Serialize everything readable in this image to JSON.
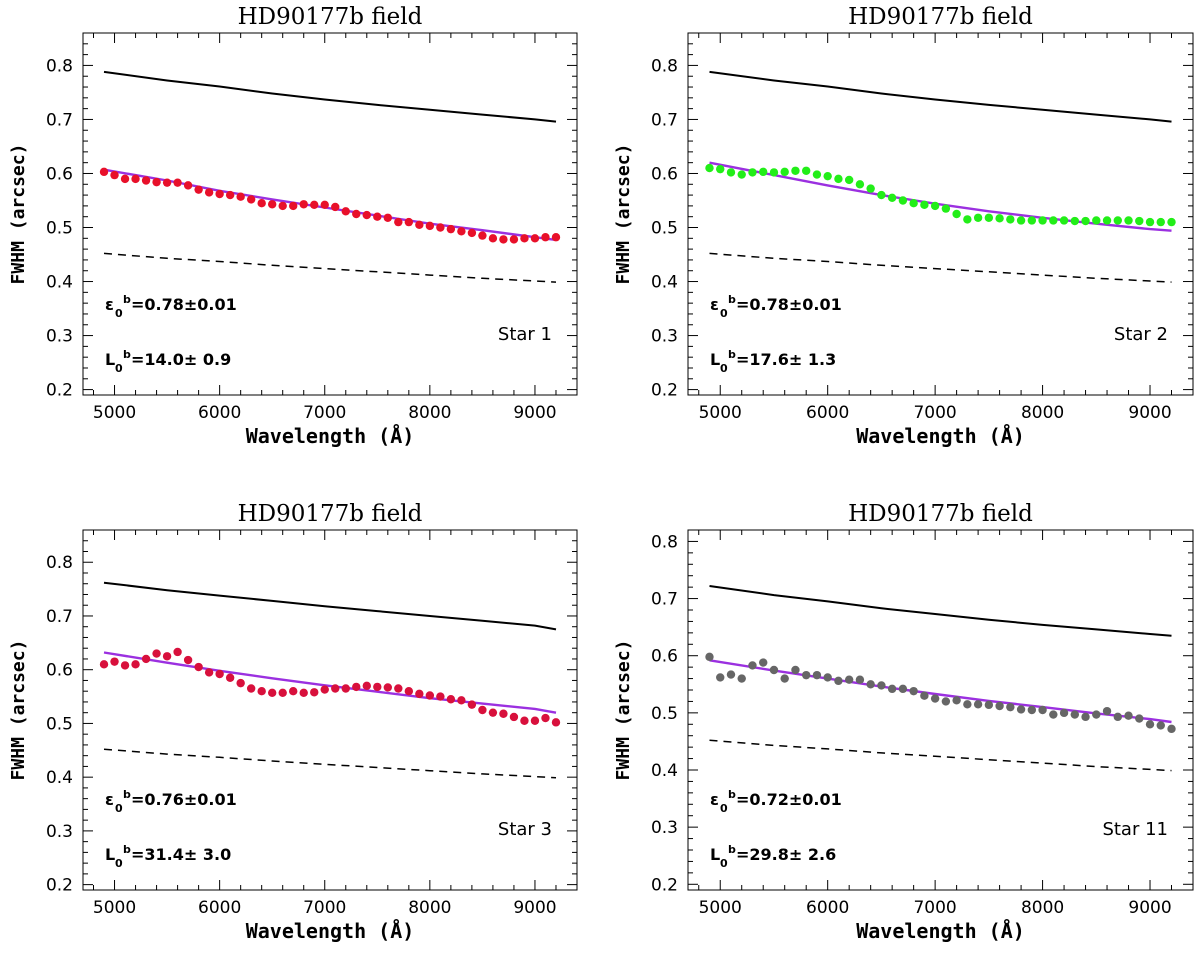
{
  "chart_data": [
    {
      "type": "scatter",
      "title": "HD90177b field",
      "xlabel": "Wavelength (Å)",
      "ylabel": "FWHM (arcsec)",
      "xlim": [
        4700,
        9400
      ],
      "ylim": [
        0.19,
        0.86
      ],
      "xticks": [
        "5000",
        "6000",
        "7000",
        "8000",
        "9000"
      ],
      "yticks": [
        "0.2",
        "0.3",
        "0.4",
        "0.5",
        "0.6",
        "0.7",
        "0.8"
      ],
      "star_label": "Star 1",
      "epsilon_label": "ε",
      "epsilon_value": "=0.78±0.01",
      "L_label": "L",
      "L_value": "=14.0± 0.9",
      "sub0": "0",
      "supb": "b",
      "point_color": "#e8102a",
      "fit_color": "#9b30e0",
      "series": [
        {
          "name": "upper curve",
          "x": [
            4900,
            5500,
            6000,
            6500,
            7000,
            7500,
            8000,
            8500,
            9000,
            9200
          ],
          "y": [
            0.788,
            0.772,
            0.761,
            0.748,
            0.737,
            0.727,
            0.718,
            0.709,
            0.7,
            0.696
          ]
        },
        {
          "name": "lower curve",
          "x": [
            4900,
            5500,
            6000,
            6500,
            7000,
            7500,
            8000,
            8500,
            9000,
            9200
          ],
          "y": [
            0.452,
            0.443,
            0.437,
            0.43,
            0.424,
            0.418,
            0.412,
            0.406,
            0.401,
            0.399
          ]
        },
        {
          "name": "fit",
          "x": [
            4900,
            5500,
            6000,
            6500,
            7000,
            7500,
            8000,
            8500,
            9000,
            9200
          ],
          "y": [
            0.607,
            0.587,
            0.568,
            0.552,
            0.537,
            0.522,
            0.507,
            0.495,
            0.482,
            0.477
          ]
        },
        {
          "name": "data",
          "x": [
            4900,
            5000,
            5100,
            5200,
            5300,
            5400,
            5500,
            5600,
            5700,
            5800,
            5900,
            6000,
            6100,
            6200,
            6300,
            6400,
            6500,
            6600,
            6700,
            6800,
            6900,
            7000,
            7100,
            7200,
            7300,
            7400,
            7500,
            7600,
            7700,
            7800,
            7900,
            8000,
            8100,
            8200,
            8300,
            8400,
            8500,
            8600,
            8700,
            8800,
            8900,
            9000,
            9100,
            9200
          ],
          "y": [
            0.603,
            0.597,
            0.59,
            0.59,
            0.587,
            0.584,
            0.583,
            0.583,
            0.578,
            0.57,
            0.565,
            0.562,
            0.56,
            0.557,
            0.552,
            0.545,
            0.543,
            0.54,
            0.54,
            0.543,
            0.542,
            0.542,
            0.538,
            0.53,
            0.525,
            0.523,
            0.52,
            0.518,
            0.51,
            0.51,
            0.505,
            0.503,
            0.5,
            0.497,
            0.493,
            0.49,
            0.485,
            0.48,
            0.478,
            0.478,
            0.48,
            0.48,
            0.482,
            0.482
          ]
        }
      ]
    },
    {
      "type": "scatter",
      "title": "HD90177b field",
      "xlabel": "Wavelength (Å)",
      "ylabel": "FWHM (arcsec)",
      "xlim": [
        4700,
        9400
      ],
      "ylim": [
        0.19,
        0.86
      ],
      "xticks": [
        "5000",
        "6000",
        "7000",
        "8000",
        "9000"
      ],
      "yticks": [
        "0.2",
        "0.3",
        "0.4",
        "0.5",
        "0.6",
        "0.7",
        "0.8"
      ],
      "star_label": "Star 2",
      "epsilon_label": "ε",
      "epsilon_value": "=0.78±0.01",
      "L_label": "L",
      "L_value": "=17.6± 1.3",
      "sub0": "0",
      "supb": "b",
      "point_color": "#22ee18",
      "fit_color": "#9b30e0",
      "series": [
        {
          "name": "upper curve",
          "x": [
            4900,
            5500,
            6000,
            6500,
            7000,
            7500,
            8000,
            8500,
            9000,
            9200
          ],
          "y": [
            0.788,
            0.772,
            0.761,
            0.748,
            0.737,
            0.727,
            0.718,
            0.709,
            0.7,
            0.696
          ]
        },
        {
          "name": "lower curve",
          "x": [
            4900,
            5500,
            6000,
            6500,
            7000,
            7500,
            8000,
            8500,
            9000,
            9200
          ],
          "y": [
            0.452,
            0.443,
            0.437,
            0.43,
            0.424,
            0.418,
            0.412,
            0.406,
            0.401,
            0.399
          ]
        },
        {
          "name": "fit",
          "x": [
            4900,
            5500,
            6000,
            6500,
            7000,
            7500,
            8000,
            8500,
            9000,
            9200
          ],
          "y": [
            0.62,
            0.597,
            0.578,
            0.56,
            0.544,
            0.53,
            0.518,
            0.507,
            0.497,
            0.494
          ]
        },
        {
          "name": "data",
          "x": [
            4900,
            5000,
            5100,
            5200,
            5300,
            5400,
            5500,
            5600,
            5700,
            5800,
            5900,
            6000,
            6100,
            6200,
            6300,
            6400,
            6500,
            6600,
            6700,
            6800,
            6900,
            7000,
            7100,
            7200,
            7300,
            7400,
            7500,
            7600,
            7700,
            7800,
            7900,
            8000,
            8100,
            8200,
            8300,
            8400,
            8500,
            8600,
            8700,
            8800,
            8900,
            9000,
            9100,
            9200
          ],
          "y": [
            0.61,
            0.608,
            0.602,
            0.598,
            0.602,
            0.603,
            0.602,
            0.603,
            0.605,
            0.605,
            0.598,
            0.595,
            0.59,
            0.588,
            0.58,
            0.572,
            0.56,
            0.555,
            0.55,
            0.545,
            0.542,
            0.54,
            0.535,
            0.525,
            0.515,
            0.518,
            0.518,
            0.517,
            0.515,
            0.513,
            0.513,
            0.513,
            0.513,
            0.513,
            0.512,
            0.512,
            0.513,
            0.513,
            0.513,
            0.513,
            0.512,
            0.51,
            0.51,
            0.51
          ]
        }
      ]
    },
    {
      "type": "scatter",
      "title": "HD90177b field",
      "xlabel": "Wavelength (Å)",
      "ylabel": "FWHM (arcsec)",
      "xlim": [
        4700,
        9400
      ],
      "ylim": [
        0.19,
        0.86
      ],
      "xticks": [
        "5000",
        "6000",
        "7000",
        "8000",
        "9000"
      ],
      "yticks": [
        "0.2",
        "0.3",
        "0.4",
        "0.5",
        "0.6",
        "0.7",
        "0.8"
      ],
      "star_label": "Star 3",
      "epsilon_label": "ε",
      "epsilon_value": "=0.76±0.01",
      "L_label": "L",
      "L_value": "=31.4± 3.0",
      "sub0": "0",
      "supb": "b",
      "point_color": "#d8103c",
      "fit_color": "#9b30e0",
      "series": [
        {
          "name": "upper curve",
          "x": [
            4900,
            5500,
            6000,
            6500,
            7000,
            7500,
            8000,
            8500,
            9000,
            9200
          ],
          "y": [
            0.762,
            0.748,
            0.738,
            0.728,
            0.718,
            0.709,
            0.7,
            0.691,
            0.682,
            0.675
          ]
        },
        {
          "name": "lower curve",
          "x": [
            4900,
            5500,
            6000,
            6500,
            7000,
            7500,
            8000,
            8500,
            9000,
            9200
          ],
          "y": [
            0.452,
            0.443,
            0.437,
            0.43,
            0.424,
            0.418,
            0.412,
            0.406,
            0.401,
            0.399
          ]
        },
        {
          "name": "fit",
          "x": [
            4900,
            5500,
            6000,
            6500,
            7000,
            7500,
            8000,
            8500,
            9000,
            9200
          ],
          "y": [
            0.632,
            0.613,
            0.598,
            0.584,
            0.571,
            0.559,
            0.547,
            0.537,
            0.527,
            0.52
          ]
        },
        {
          "name": "data",
          "x": [
            4900,
            5000,
            5100,
            5200,
            5300,
            5400,
            5500,
            5600,
            5700,
            5800,
            5900,
            6000,
            6100,
            6200,
            6300,
            6400,
            6500,
            6600,
            6700,
            6800,
            6900,
            7000,
            7100,
            7200,
            7300,
            7400,
            7500,
            7600,
            7700,
            7800,
            7900,
            8000,
            8100,
            8200,
            8300,
            8400,
            8500,
            8600,
            8700,
            8800,
            8900,
            9000,
            9100,
            9200
          ],
          "y": [
            0.61,
            0.615,
            0.608,
            0.61,
            0.62,
            0.63,
            0.625,
            0.633,
            0.618,
            0.605,
            0.595,
            0.592,
            0.585,
            0.575,
            0.565,
            0.56,
            0.557,
            0.557,
            0.56,
            0.557,
            0.558,
            0.563,
            0.565,
            0.565,
            0.568,
            0.57,
            0.568,
            0.567,
            0.565,
            0.56,
            0.555,
            0.552,
            0.55,
            0.545,
            0.543,
            0.535,
            0.525,
            0.52,
            0.518,
            0.512,
            0.505,
            0.505,
            0.51,
            0.502
          ]
        }
      ]
    },
    {
      "type": "scatter",
      "title": "HD90177b field",
      "xlabel": "Wavelength (Å)",
      "ylabel": "FWHM (arcsec)",
      "xlim": [
        4700,
        9400
      ],
      "ylim": [
        0.19,
        0.82
      ],
      "xticks": [
        "5000",
        "6000",
        "7000",
        "8000",
        "9000"
      ],
      "yticks": [
        "0.2",
        "0.3",
        "0.4",
        "0.5",
        "0.6",
        "0.7",
        "0.8"
      ],
      "star_label": "Star 11",
      "epsilon_label": "ε",
      "epsilon_value": "=0.72±0.01",
      "L_label": "L",
      "L_value": "=29.8± 2.6",
      "sub0": "0",
      "supb": "b",
      "point_color": "#666666",
      "fit_color": "#9b30e0",
      "series": [
        {
          "name": "upper curve",
          "x": [
            4900,
            5500,
            6000,
            6500,
            7000,
            7500,
            8000,
            8500,
            9000,
            9200
          ],
          "y": [
            0.722,
            0.706,
            0.695,
            0.683,
            0.673,
            0.663,
            0.654,
            0.646,
            0.638,
            0.635
          ]
        },
        {
          "name": "lower curve",
          "x": [
            4900,
            5500,
            6000,
            6500,
            7000,
            7500,
            8000,
            8500,
            9000,
            9200
          ],
          "y": [
            0.452,
            0.443,
            0.437,
            0.43,
            0.424,
            0.418,
            0.412,
            0.406,
            0.401,
            0.399
          ]
        },
        {
          "name": "fit",
          "x": [
            4900,
            5500,
            6000,
            6500,
            7000,
            7500,
            8000,
            8500,
            9000,
            9200
          ],
          "y": [
            0.592,
            0.574,
            0.56,
            0.546,
            0.533,
            0.521,
            0.51,
            0.499,
            0.489,
            0.484
          ]
        },
        {
          "name": "data",
          "x": [
            4900,
            5000,
            5100,
            5200,
            5300,
            5400,
            5500,
            5600,
            5700,
            5800,
            5900,
            6000,
            6100,
            6200,
            6300,
            6400,
            6500,
            6600,
            6700,
            6800,
            6900,
            7000,
            7100,
            7200,
            7300,
            7400,
            7500,
            7600,
            7700,
            7800,
            7900,
            8000,
            8100,
            8200,
            8300,
            8400,
            8500,
            8600,
            8700,
            8800,
            8900,
            9000,
            9100,
            9200
          ],
          "y": [
            0.598,
            0.562,
            0.567,
            0.56,
            0.583,
            0.588,
            0.575,
            0.56,
            0.575,
            0.566,
            0.566,
            0.562,
            0.556,
            0.558,
            0.558,
            0.55,
            0.548,
            0.542,
            0.542,
            0.538,
            0.53,
            0.525,
            0.52,
            0.522,
            0.515,
            0.515,
            0.514,
            0.512,
            0.51,
            0.506,
            0.505,
            0.505,
            0.497,
            0.5,
            0.497,
            0.493,
            0.497,
            0.503,
            0.493,
            0.495,
            0.49,
            0.48,
            0.478,
            0.472
          ]
        }
      ]
    }
  ]
}
